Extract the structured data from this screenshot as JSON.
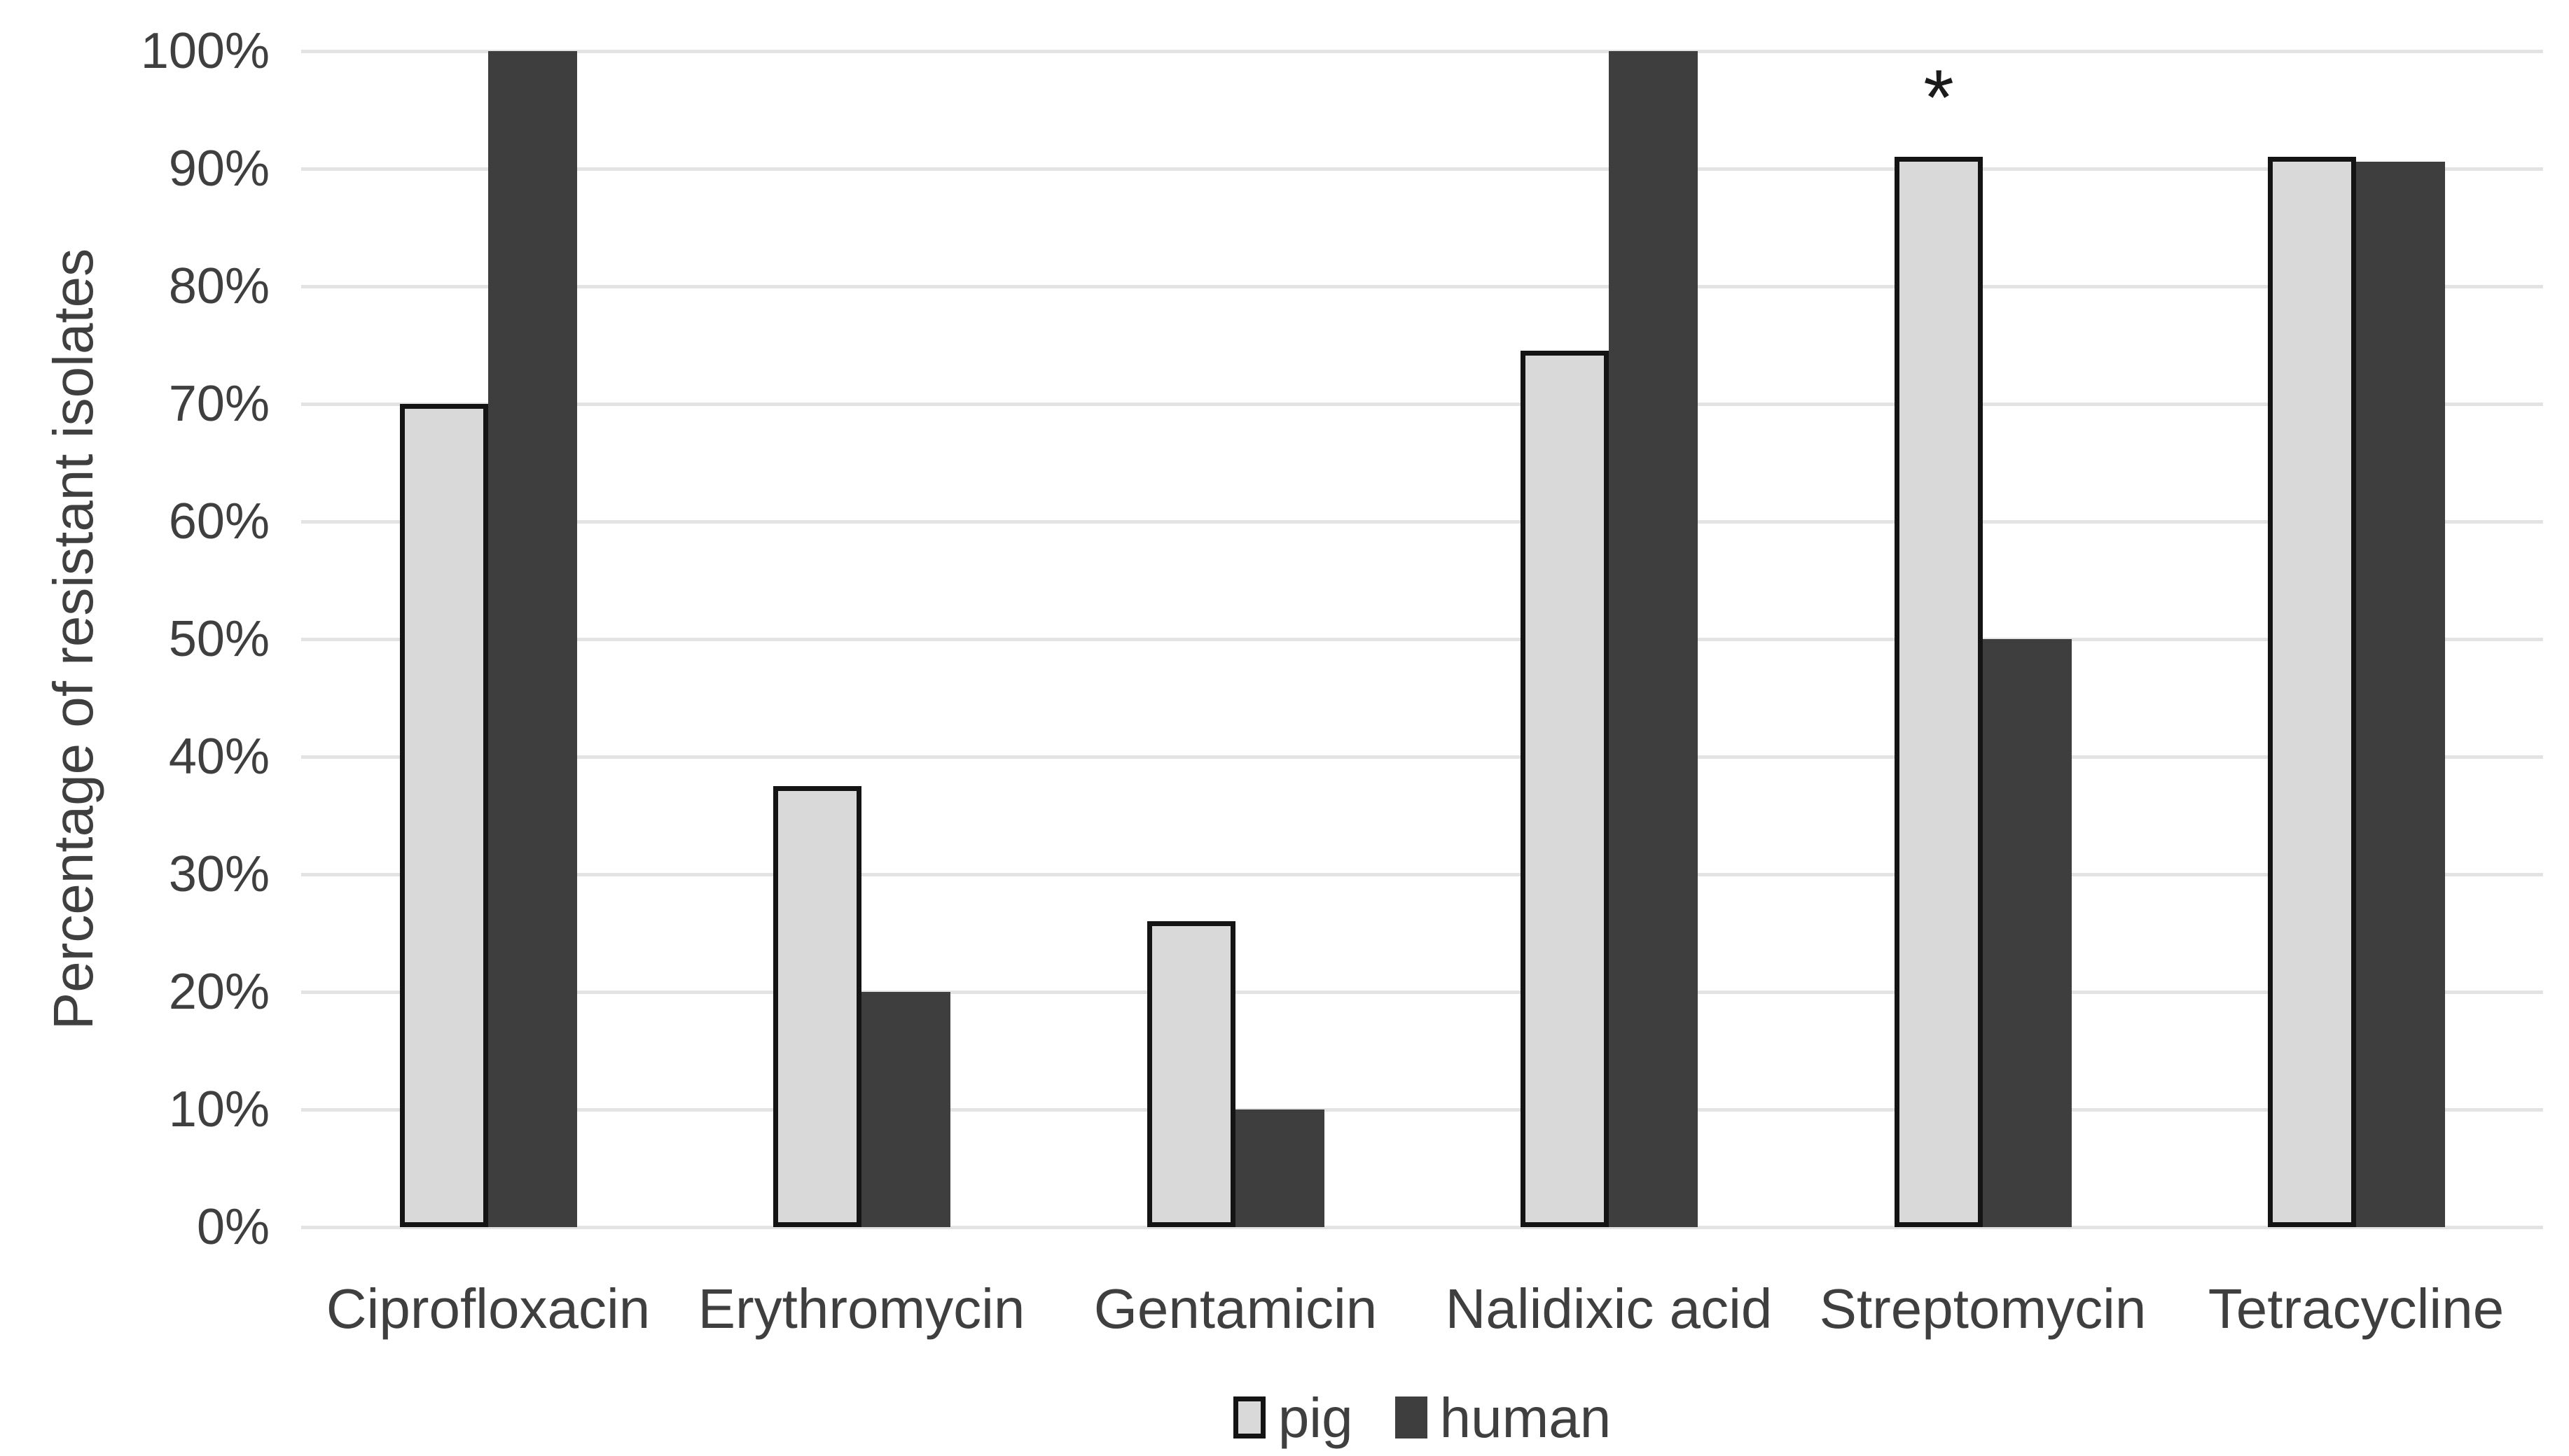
{
  "figure": {
    "background": "#ffffff"
  },
  "colors": {
    "pig_fill": "#d9d9d9",
    "pig_border": "#141414",
    "human_fill": "#3e3e3e",
    "gridline": "#e3e3e3",
    "text": "#3f3f3f",
    "annotation": "#1b1b1b"
  },
  "chart_data": {
    "type": "bar",
    "title": "",
    "xlabel": "",
    "ylabel": "Percentage of resistant isolates",
    "categories": [
      "Ciprofloxacin",
      "Erythromycin",
      "Gentamicin",
      "Nalidixic acid",
      "Streptomycin",
      "Tetracycline"
    ],
    "series": [
      {
        "name": "pig",
        "values": [
          70,
          37.5,
          26,
          74.5,
          91,
          91
        ],
        "fill": "#d9d9d9",
        "border": "#141414"
      },
      {
        "name": "human",
        "values": [
          100,
          20,
          10,
          100,
          50,
          90.6
        ],
        "fill": "#3e3e3e",
        "border": "#3e3e3e"
      }
    ],
    "value_unit": "%",
    "ylim": [
      0,
      100
    ],
    "y_ticks": [
      "0%",
      "10%",
      "20%",
      "30%",
      "40%",
      "50%",
      "60%",
      "70%",
      "80%",
      "90%",
      "100%"
    ],
    "grid": true,
    "legend_position": "bottom",
    "annotations": [
      {
        "text": "*",
        "category": "Streptomycin",
        "series": "pig"
      }
    ]
  }
}
